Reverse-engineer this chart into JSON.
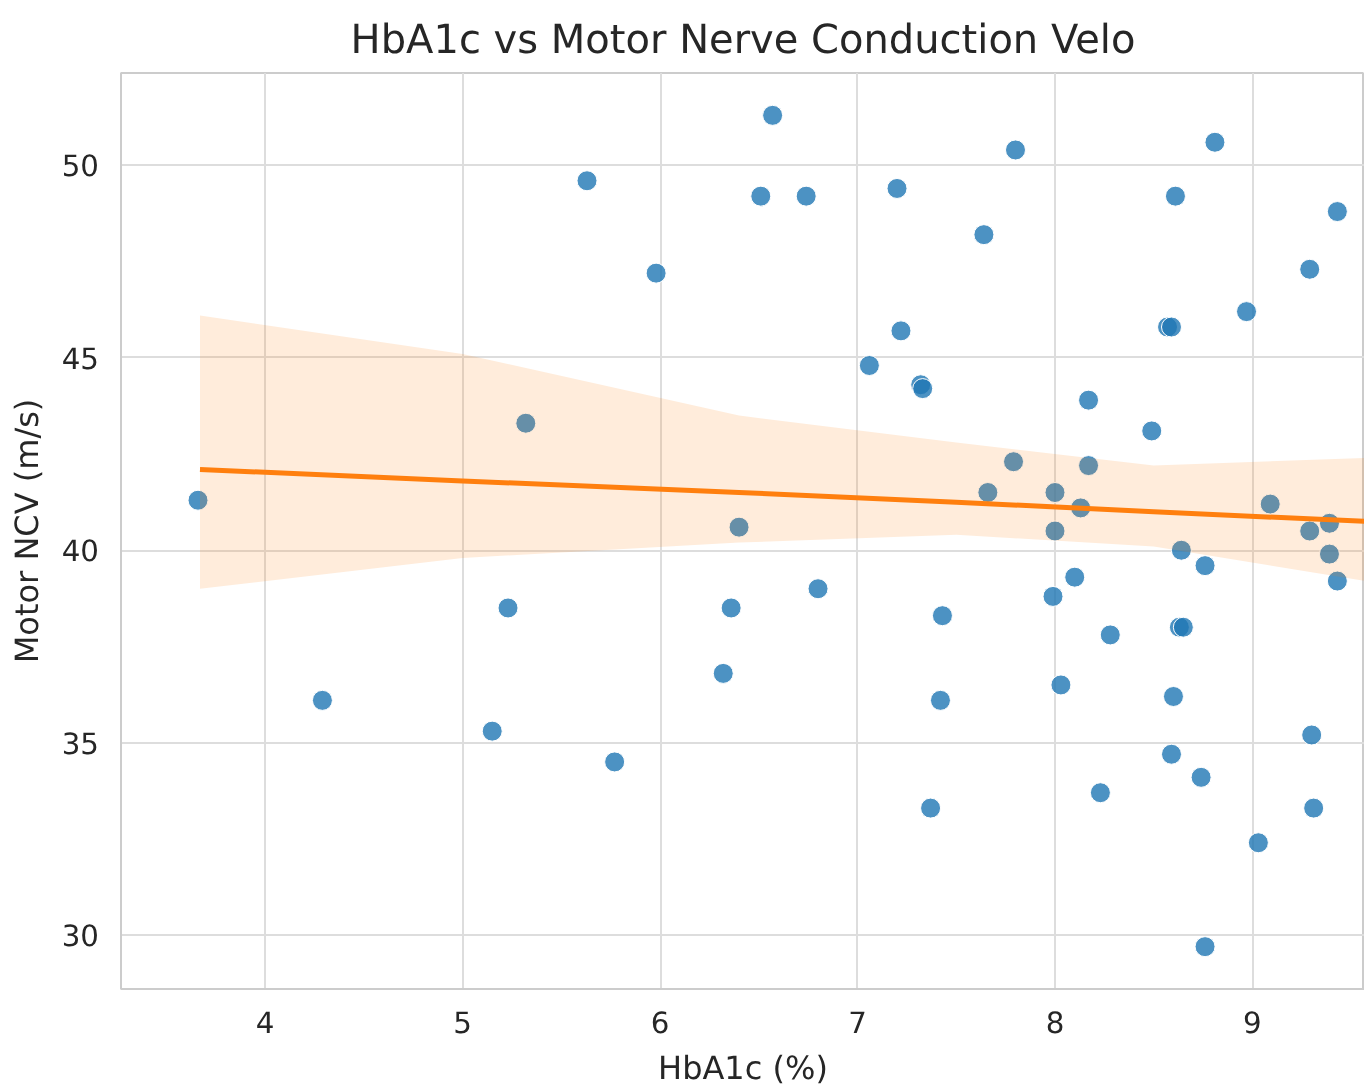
{
  "chart_data": {
    "type": "scatter",
    "title": "HbA1c vs Motor Nerve Conduction Velo",
    "xlabel": "HbA1c (%)",
    "ylabel": "Motor NCV (m/s)",
    "xlim": [
      3.27,
      9.57
    ],
    "ylim": [
      28.6,
      52.4
    ],
    "xticks": [
      4,
      5,
      6,
      7,
      8,
      9
    ],
    "yticks": [
      30,
      35,
      40,
      45,
      50
    ],
    "grid": true,
    "series": [
      {
        "marker": "circle",
        "color": "#1f77b4",
        "x": [
          3.66,
          4.29,
          5.15,
          5.23,
          5.32,
          5.77,
          5.63,
          5.98,
          6.32,
          6.36,
          6.4,
          6.57,
          6.51,
          6.74,
          6.8,
          7.06,
          7.2,
          7.22,
          7.32,
          7.33,
          7.37,
          7.42,
          7.43,
          7.64,
          7.66,
          7.8,
          7.79,
          7.99,
          8.0,
          8.0,
          8.03,
          8.1,
          8.13,
          8.17,
          8.17,
          8.23,
          8.28,
          8.49,
          8.57,
          8.59,
          8.61,
          8.59,
          8.6,
          8.64,
          8.63,
          8.65,
          8.76,
          8.81,
          8.74,
          8.76,
          8.97,
          9.03,
          9.09,
          9.29,
          9.29,
          9.3,
          9.31,
          9.39,
          9.39,
          9.43,
          9.43
        ],
        "values": [
          41.3,
          36.1,
          35.3,
          38.5,
          43.3,
          34.5,
          49.6,
          47.2,
          36.8,
          38.5,
          40.6,
          51.3,
          49.2,
          49.2,
          39.0,
          44.8,
          49.4,
          45.7,
          44.3,
          44.2,
          33.3,
          36.1,
          38.3,
          48.2,
          41.5,
          50.4,
          42.3,
          38.8,
          40.5,
          41.5,
          36.5,
          39.3,
          41.1,
          43.9,
          42.2,
          33.7,
          37.8,
          43.1,
          45.8,
          45.8,
          49.2,
          34.7,
          36.2,
          40.0,
          38.0,
          38.0,
          39.6,
          50.6,
          34.1,
          29.7,
          46.2,
          32.4,
          41.2,
          47.3,
          40.5,
          35.2,
          33.3,
          40.7,
          39.9,
          39.2,
          48.8
        ]
      },
      {
        "type": "line",
        "color": "#ff7f0e",
        "x": [
          3.67,
          5.0,
          6.4,
          7.5,
          8.5,
          9.57
        ],
        "values": [
          42.1,
          41.8,
          41.5,
          41.25,
          41.0,
          40.75
        ],
        "lower": [
          39.0,
          39.8,
          40.2,
          40.4,
          40.1,
          39.2
        ],
        "upper": [
          46.1,
          45.1,
          43.5,
          42.8,
          42.2,
          42.4
        ]
      }
    ]
  }
}
